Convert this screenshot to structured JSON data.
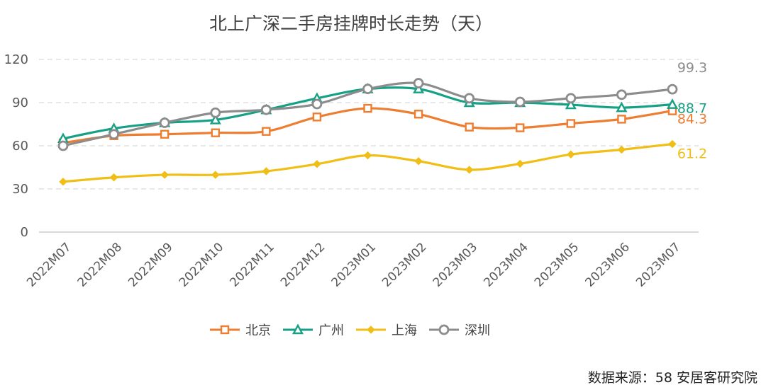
{
  "chart_data": {
    "type": "line",
    "title": "北上广深二手房挂牌时长走势（天）",
    "x": [
      "2022M07",
      "2022M08",
      "2022M09",
      "2022M10",
      "2022M11",
      "2022M12",
      "2023M01",
      "2023M02",
      "2023M03",
      "2023M04",
      "2023M05",
      "2023M06",
      "2023M07"
    ],
    "ylim": [
      0,
      120
    ],
    "yticks": [
      0,
      30,
      60,
      90,
      120
    ],
    "grid": true,
    "legend_position": "bottom",
    "series": [
      {
        "name": "北京",
        "color": "#ED7D31",
        "marker": "square",
        "values": [
          62,
          67,
          68,
          69,
          70,
          80,
          86,
          82,
          73,
          72.5,
          75.5,
          78.5,
          84.3
        ],
        "end_label": "84.3"
      },
      {
        "name": "广州",
        "color": "#16A085",
        "marker": "triangle",
        "values": [
          65,
          72,
          76,
          78,
          85,
          93,
          99.5,
          99.5,
          90,
          90,
          88.5,
          86.5,
          88.7
        ],
        "end_label": "88.7"
      },
      {
        "name": "上海",
        "color": "#F0BE14",
        "marker": "diamond",
        "values": [
          35,
          38,
          39.8,
          39.8,
          42.3,
          47.3,
          53.3,
          49.3,
          43.3,
          47.5,
          54,
          57.3,
          61.2
        ],
        "end_label": "61.2"
      },
      {
        "name": "深圳",
        "color": "#8C8C8C",
        "marker": "circle",
        "values": [
          60,
          68,
          76,
          83,
          85,
          89,
          99.5,
          103.5,
          93,
          90.5,
          93,
          95.5,
          99.3
        ],
        "end_label": "99.3"
      }
    ]
  },
  "source": "数据来源：58 安居客研究院"
}
